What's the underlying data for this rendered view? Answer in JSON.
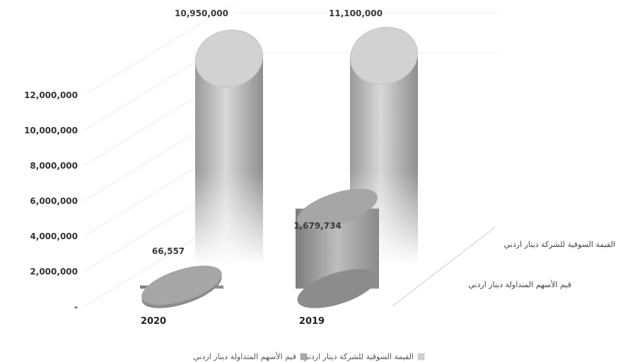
{
  "chart_data": {
    "type": "bar",
    "subtype": "3d-cylinder",
    "categories": [
      "2020",
      "2019"
    ],
    "series": [
      {
        "name": "القيمة السوقية للشركة دينار اردني",
        "values": [
          10950000,
          11100000
        ],
        "value_labels": [
          "10,950,000",
          "11,100,000"
        ],
        "color": "#cfcfcf"
      },
      {
        "name": "قيم الأسهم المتداولة دينار اردني",
        "values": [
          66557,
          1679734
        ],
        "value_labels": [
          "66,557",
          "1,679,734"
        ],
        "color": "#a9a9a9"
      }
    ],
    "y_tick_labels": [
      "-",
      "2,000,000",
      "4,000,000",
      "6,000,000",
      "8,000,000",
      "10,000,000",
      "12,000,000"
    ],
    "ylim": [
      0,
      12000000
    ],
    "grid": true,
    "legend": "bottom"
  }
}
